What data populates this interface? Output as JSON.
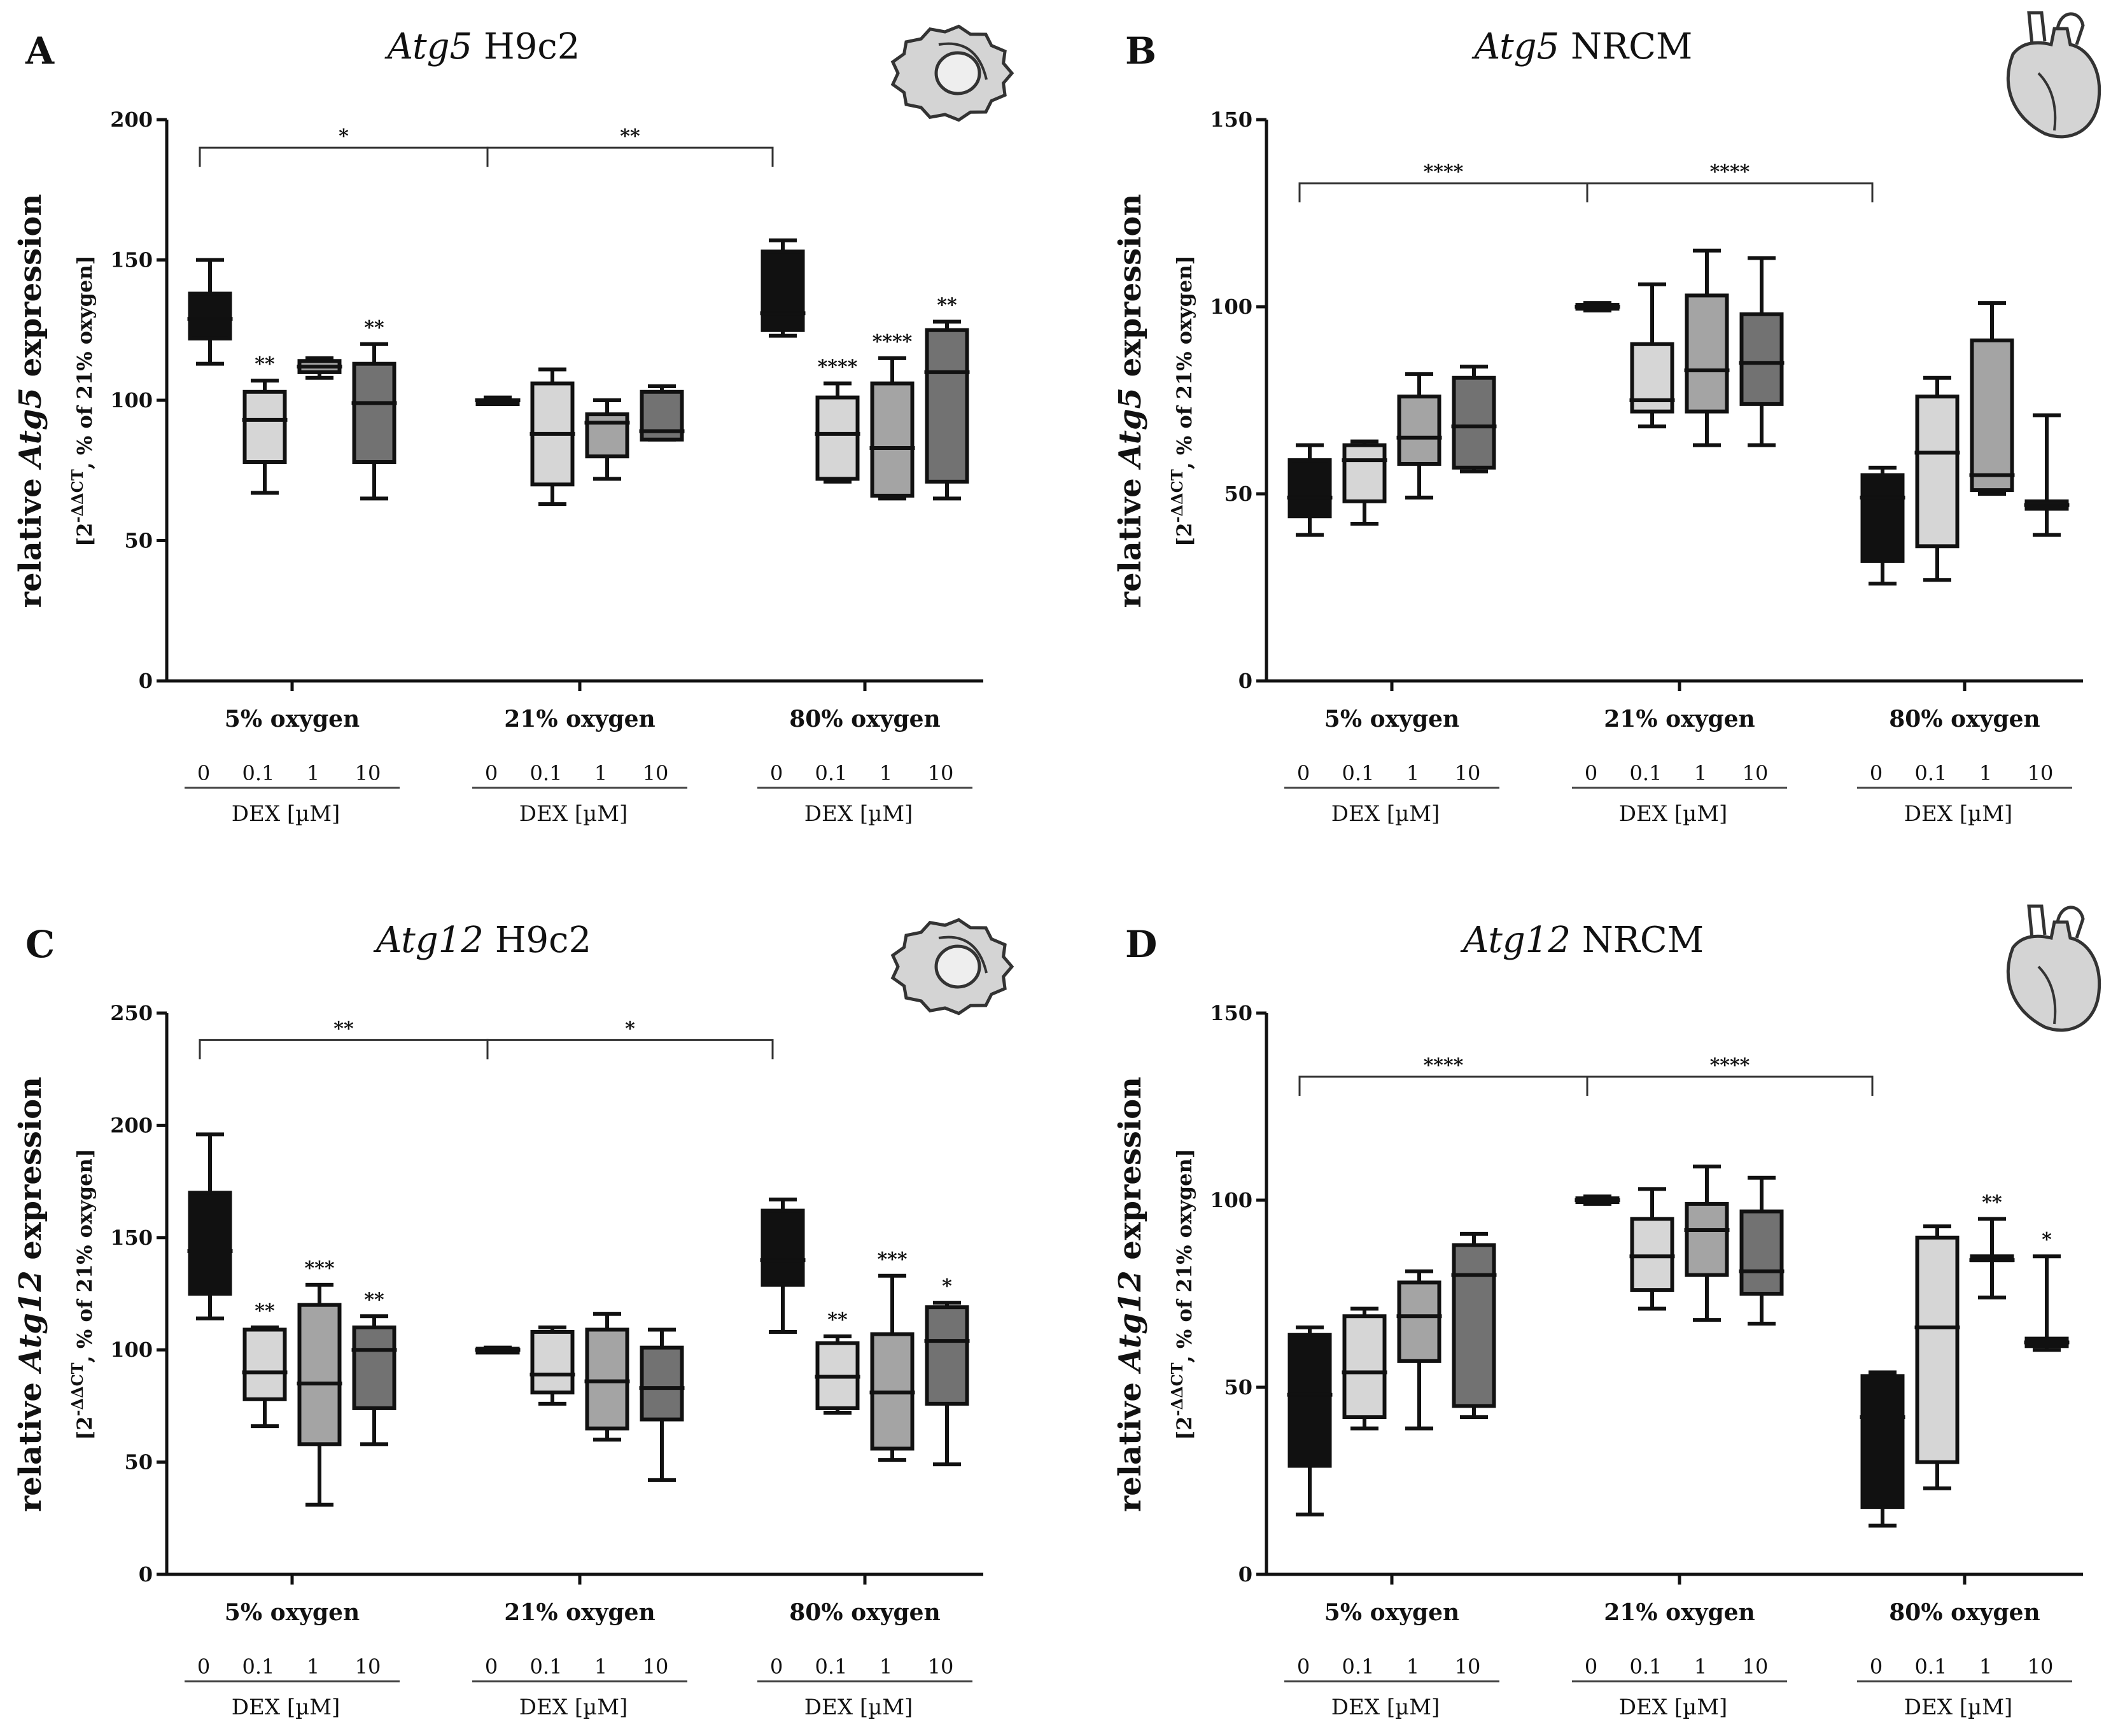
{
  "colors": {
    "dose_fills": [
      "#111111",
      "#d6d6d6",
      "#a4a4a4",
      "#727272"
    ],
    "icon_fill": "#d4d4d4",
    "icon_stroke": "#333333"
  },
  "chart_data": [
    {
      "type": "box",
      "letter": "A",
      "title_italic": "Atg5",
      "title_rest": " H9c2",
      "icon": "cell-icon",
      "ylabel_pre": "relative ",
      "ylabel_gene": "Atg5",
      "ylabel_post": " expression",
      "ysub_pre": "[2",
      "ysub_sup": "-ΔΔCT",
      "ysub_post": ", % of 21% oxygen]",
      "ylim": [
        0,
        200
      ],
      "yticks": [
        0,
        50,
        100,
        150,
        200
      ],
      "groups": [
        "5% oxygen",
        "21% oxygen",
        "80% oxygen"
      ],
      "doses": [
        "0",
        "0.1",
        "1",
        "10"
      ],
      "dose_axis_label": "DEX [µM]",
      "brackets": [
        {
          "from_group": 0,
          "to_group": 1,
          "y": 190,
          "label": "*"
        },
        {
          "from_group": 1,
          "to_group": 2,
          "y": 190,
          "label": "**"
        }
      ],
      "series": [
        {
          "group": "5% oxygen",
          "dose": "0",
          "min": 113,
          "q1": 122,
          "median": 129,
          "q3": 138,
          "max": 150,
          "sig": ""
        },
        {
          "group": "5% oxygen",
          "dose": "0.1",
          "min": 67,
          "q1": 78,
          "median": 93,
          "q3": 103,
          "max": 107,
          "sig": "**"
        },
        {
          "group": "5% oxygen",
          "dose": "1",
          "min": 108,
          "q1": 110,
          "median": 112,
          "q3": 114,
          "max": 115,
          "sig": ""
        },
        {
          "group": "5% oxygen",
          "dose": "10",
          "min": 65,
          "q1": 78,
          "median": 99,
          "q3": 113,
          "max": 120,
          "sig": "**"
        },
        {
          "group": "21% oxygen",
          "dose": "0",
          "min": 99,
          "q1": 99,
          "median": 100,
          "q3": 100,
          "max": 101,
          "sig": ""
        },
        {
          "group": "21% oxygen",
          "dose": "0.1",
          "min": 63,
          "q1": 70,
          "median": 88,
          "q3": 106,
          "max": 111,
          "sig": ""
        },
        {
          "group": "21% oxygen",
          "dose": "1",
          "min": 72,
          "q1": 80,
          "median": 92,
          "q3": 95,
          "max": 100,
          "sig": ""
        },
        {
          "group": "21% oxygen",
          "dose": "10",
          "min": 86,
          "q1": 86,
          "median": 89,
          "q3": 103,
          "max": 105,
          "sig": ""
        },
        {
          "group": "80% oxygen",
          "dose": "0",
          "min": 123,
          "q1": 125,
          "median": 131,
          "q3": 153,
          "max": 157,
          "sig": ""
        },
        {
          "group": "80% oxygen",
          "dose": "0.1",
          "min": 71,
          "q1": 72,
          "median": 88,
          "q3": 101,
          "max": 106,
          "sig": "****"
        },
        {
          "group": "80% oxygen",
          "dose": "1",
          "min": 65,
          "q1": 66,
          "median": 83,
          "q3": 106,
          "max": 115,
          "sig": "****"
        },
        {
          "group": "80% oxygen",
          "dose": "10",
          "min": 65,
          "q1": 71,
          "median": 110,
          "q3": 125,
          "max": 128,
          "sig": "**"
        }
      ]
    },
    {
      "type": "box",
      "letter": "B",
      "title_italic": "Atg5",
      "title_rest": " NRCM",
      "icon": "heart-icon",
      "ylabel_pre": "relative ",
      "ylabel_gene": "Atg5",
      "ylabel_post": " expression",
      "ysub_pre": "[2",
      "ysub_sup": "-ΔΔCT",
      "ysub_post": ", % of 21% oxygen]",
      "ylim": [
        0,
        150
      ],
      "yticks": [
        0,
        50,
        100,
        150
      ],
      "groups": [
        "5% oxygen",
        "21% oxygen",
        "80% oxygen"
      ],
      "doses": [
        "0",
        "0.1",
        "1",
        "10"
      ],
      "dose_axis_label": "DEX [µM]",
      "brackets": [
        {
          "from_group": 0,
          "to_group": 1,
          "y": 133,
          "label": "****"
        },
        {
          "from_group": 1,
          "to_group": 2,
          "y": 133,
          "label": "****"
        }
      ],
      "series": [
        {
          "group": "5% oxygen",
          "dose": "0",
          "min": 39,
          "q1": 44,
          "median": 49,
          "q3": 59,
          "max": 63,
          "sig": ""
        },
        {
          "group": "5% oxygen",
          "dose": "0.1",
          "min": 42,
          "q1": 48,
          "median": 59,
          "q3": 63,
          "max": 64,
          "sig": ""
        },
        {
          "group": "5% oxygen",
          "dose": "1",
          "min": 49,
          "q1": 58,
          "median": 65,
          "q3": 76,
          "max": 82,
          "sig": ""
        },
        {
          "group": "5% oxygen",
          "dose": "10",
          "min": 56,
          "q1": 57,
          "median": 68,
          "q3": 81,
          "max": 84,
          "sig": ""
        },
        {
          "group": "21% oxygen",
          "dose": "0",
          "min": 99,
          "q1": 99.5,
          "median": 100,
          "q3": 100.5,
          "max": 101,
          "sig": ""
        },
        {
          "group": "21% oxygen",
          "dose": "0.1",
          "min": 68,
          "q1": 72,
          "median": 75,
          "q3": 90,
          "max": 106,
          "sig": ""
        },
        {
          "group": "21% oxygen",
          "dose": "1",
          "min": 63,
          "q1": 72,
          "median": 83,
          "q3": 103,
          "max": 115,
          "sig": ""
        },
        {
          "group": "21% oxygen",
          "dose": "10",
          "min": 63,
          "q1": 74,
          "median": 85,
          "q3": 98,
          "max": 113,
          "sig": ""
        },
        {
          "group": "80% oxygen",
          "dose": "0",
          "min": 26,
          "q1": 32,
          "median": 49,
          "q3": 55,
          "max": 57,
          "sig": ""
        },
        {
          "group": "80% oxygen",
          "dose": "0.1",
          "min": 27,
          "q1": 36,
          "median": 61,
          "q3": 76,
          "max": 81,
          "sig": ""
        },
        {
          "group": "80% oxygen",
          "dose": "1",
          "min": 50,
          "q1": 51,
          "median": 55,
          "q3": 91,
          "max": 101,
          "sig": ""
        },
        {
          "group": "80% oxygen",
          "dose": "10",
          "min": 39,
          "q1": 46,
          "median": 47,
          "q3": 48,
          "max": 71,
          "sig": ""
        }
      ]
    },
    {
      "type": "box",
      "letter": "C",
      "title_italic": "Atg12",
      "title_rest": " H9c2",
      "icon": "cell-icon",
      "ylabel_pre": "relative ",
      "ylabel_gene": "Atg12",
      "ylabel_post": " expression",
      "ysub_pre": "[2",
      "ysub_sup": "-ΔΔCT",
      "ysub_post": ", % of 21% oxygen]",
      "ylim": [
        0,
        250
      ],
      "yticks": [
        0,
        50,
        100,
        150,
        200,
        250
      ],
      "groups": [
        "5% oxygen",
        "21% oxygen",
        "80% oxygen"
      ],
      "doses": [
        "0",
        "0.1",
        "1",
        "10"
      ],
      "dose_axis_label": "DEX [µM]",
      "brackets": [
        {
          "from_group": 0,
          "to_group": 1,
          "y": 238,
          "label": "**"
        },
        {
          "from_group": 1,
          "to_group": 2,
          "y": 238,
          "label": "*"
        }
      ],
      "series": [
        {
          "group": "5% oxygen",
          "dose": "0",
          "min": 114,
          "q1": 125,
          "median": 144,
          "q3": 170,
          "max": 196,
          "sig": ""
        },
        {
          "group": "5% oxygen",
          "dose": "0.1",
          "min": 66,
          "q1": 78,
          "median": 90,
          "q3": 109,
          "max": 110,
          "sig": "**"
        },
        {
          "group": "5% oxygen",
          "dose": "1",
          "min": 31,
          "q1": 58,
          "median": 85,
          "q3": 120,
          "max": 129,
          "sig": "***"
        },
        {
          "group": "5% oxygen",
          "dose": "10",
          "min": 58,
          "q1": 74,
          "median": 100,
          "q3": 110,
          "max": 115,
          "sig": "**"
        },
        {
          "group": "21% oxygen",
          "dose": "0",
          "min": 99,
          "q1": 99.5,
          "median": 100,
          "q3": 100.5,
          "max": 101,
          "sig": ""
        },
        {
          "group": "21% oxygen",
          "dose": "0.1",
          "min": 76,
          "q1": 81,
          "median": 89,
          "q3": 108,
          "max": 110,
          "sig": ""
        },
        {
          "group": "21% oxygen",
          "dose": "1",
          "min": 60,
          "q1": 65,
          "median": 86,
          "q3": 109,
          "max": 116,
          "sig": ""
        },
        {
          "group": "21% oxygen",
          "dose": "10",
          "min": 42,
          "q1": 69,
          "median": 83,
          "q3": 101,
          "max": 109,
          "sig": ""
        },
        {
          "group": "80% oxygen",
          "dose": "0",
          "min": 108,
          "q1": 129,
          "median": 140,
          "q3": 162,
          "max": 167,
          "sig": ""
        },
        {
          "group": "80% oxygen",
          "dose": "0.1",
          "min": 72,
          "q1": 74,
          "median": 88,
          "q3": 103,
          "max": 106,
          "sig": "**"
        },
        {
          "group": "80% oxygen",
          "dose": "1",
          "min": 51,
          "q1": 56,
          "median": 81,
          "q3": 107,
          "max": 133,
          "sig": "***"
        },
        {
          "group": "80% oxygen",
          "dose": "10",
          "min": 49,
          "q1": 76,
          "median": 104,
          "q3": 119,
          "max": 121,
          "sig": "*"
        }
      ]
    },
    {
      "type": "box",
      "letter": "D",
      "title_italic": "Atg12",
      "title_rest": " NRCM",
      "icon": "heart-icon",
      "ylabel_pre": "relative ",
      "ylabel_gene": "Atg12",
      "ylabel_post": " expression",
      "ysub_pre": "[2",
      "ysub_sup": "-ΔΔCT",
      "ysub_post": ", % of 21% oxygen]",
      "ylim": [
        0,
        150
      ],
      "yticks": [
        0,
        50,
        100,
        150
      ],
      "groups": [
        "5% oxygen",
        "21% oxygen",
        "80% oxygen"
      ],
      "doses": [
        "0",
        "0.1",
        "1",
        "10"
      ],
      "dose_axis_label": "DEX [µM]",
      "brackets": [
        {
          "from_group": 0,
          "to_group": 1,
          "y": 133,
          "label": "****"
        },
        {
          "from_group": 1,
          "to_group": 2,
          "y": 133,
          "label": "****"
        }
      ],
      "series": [
        {
          "group": "5% oxygen",
          "dose": "0",
          "min": 16,
          "q1": 29,
          "median": 48,
          "q3": 64,
          "max": 66,
          "sig": ""
        },
        {
          "group": "5% oxygen",
          "dose": "0.1",
          "min": 39,
          "q1": 42,
          "median": 54,
          "q3": 69,
          "max": 71,
          "sig": ""
        },
        {
          "group": "5% oxygen",
          "dose": "1",
          "min": 39,
          "q1": 57,
          "median": 69,
          "q3": 78,
          "max": 81,
          "sig": ""
        },
        {
          "group": "5% oxygen",
          "dose": "10",
          "min": 42,
          "q1": 45,
          "median": 80,
          "q3": 88,
          "max": 91,
          "sig": ""
        },
        {
          "group": "21% oxygen",
          "dose": "0",
          "min": 99,
          "q1": 99.5,
          "median": 100,
          "q3": 100.5,
          "max": 101,
          "sig": ""
        },
        {
          "group": "21% oxygen",
          "dose": "0.1",
          "min": 71,
          "q1": 76,
          "median": 85,
          "q3": 95,
          "max": 103,
          "sig": ""
        },
        {
          "group": "21% oxygen",
          "dose": "1",
          "min": 68,
          "q1": 80,
          "median": 92,
          "q3": 99,
          "max": 109,
          "sig": ""
        },
        {
          "group": "21% oxygen",
          "dose": "10",
          "min": 67,
          "q1": 75,
          "median": 81,
          "q3": 97,
          "max": 106,
          "sig": ""
        },
        {
          "group": "80% oxygen",
          "dose": "0",
          "min": 13,
          "q1": 18,
          "median": 42,
          "q3": 53,
          "max": 54,
          "sig": ""
        },
        {
          "group": "80% oxygen",
          "dose": "0.1",
          "min": 23,
          "q1": 30,
          "median": 66,
          "q3": 90,
          "max": 93,
          "sig": ""
        },
        {
          "group": "80% oxygen",
          "dose": "1",
          "min": 74,
          "q1": 84,
          "median": 84,
          "q3": 85,
          "max": 95,
          "sig": "**"
        },
        {
          "group": "80% oxygen",
          "dose": "10",
          "min": 60,
          "q1": 61,
          "median": 62,
          "q3": 63,
          "max": 85,
          "sig": "*"
        }
      ]
    }
  ]
}
